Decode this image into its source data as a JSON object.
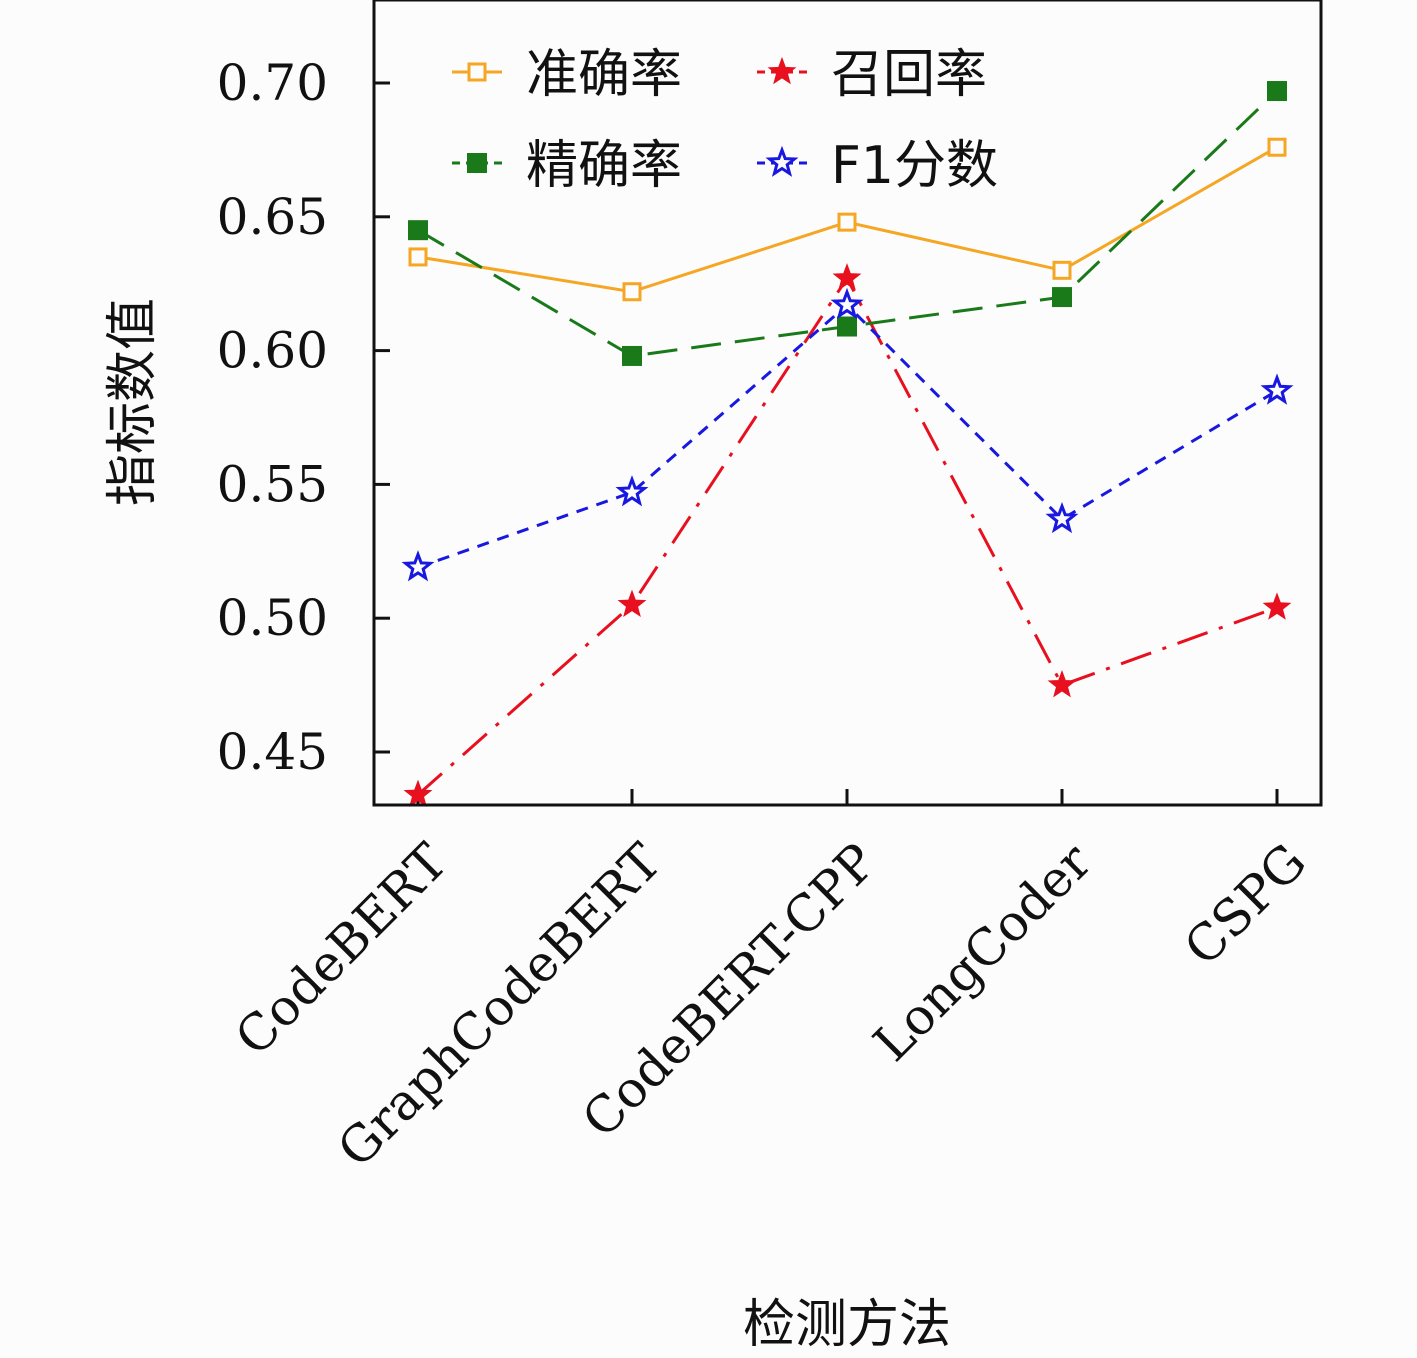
{
  "chart_data": {
    "type": "line",
    "title": "",
    "xlabel": "检测方法",
    "ylabel": "指标数值",
    "categories": [
      "CodeBERT",
      "GraphCodeBERT",
      "CodeBERT-CPP",
      "LongCoder",
      "CSPG"
    ],
    "ylim": [
      0.43,
      0.73
    ],
    "yticks": [
      0.45,
      0.5,
      0.55,
      0.6,
      0.65,
      0.7
    ],
    "ytick_labels": [
      "0.45",
      "0.50",
      "0.55",
      "0.60",
      "0.65",
      "0.70"
    ],
    "grid": false,
    "legend_position": "top",
    "series": [
      {
        "name": "准确率",
        "values": [
          0.635,
          0.622,
          0.648,
          0.63,
          0.676
        ],
        "color": "#f5a623",
        "marker": "square-open",
        "dash": "solid"
      },
      {
        "name": "召回率",
        "values": [
          0.434,
          0.505,
          0.627,
          0.475,
          0.504
        ],
        "color": "#e8101e",
        "marker": "star-filled",
        "dash": "dashdot"
      },
      {
        "name": "精确率",
        "values": [
          0.645,
          0.598,
          0.609,
          0.62,
          0.697
        ],
        "color": "#1a7a1a",
        "marker": "square-filled",
        "dash": "longdash"
      },
      {
        "name": "F1分数",
        "values": [
          0.519,
          0.547,
          0.617,
          0.537,
          0.585
        ],
        "color": "#1818e0",
        "marker": "star-open",
        "dash": "dashed"
      }
    ]
  }
}
